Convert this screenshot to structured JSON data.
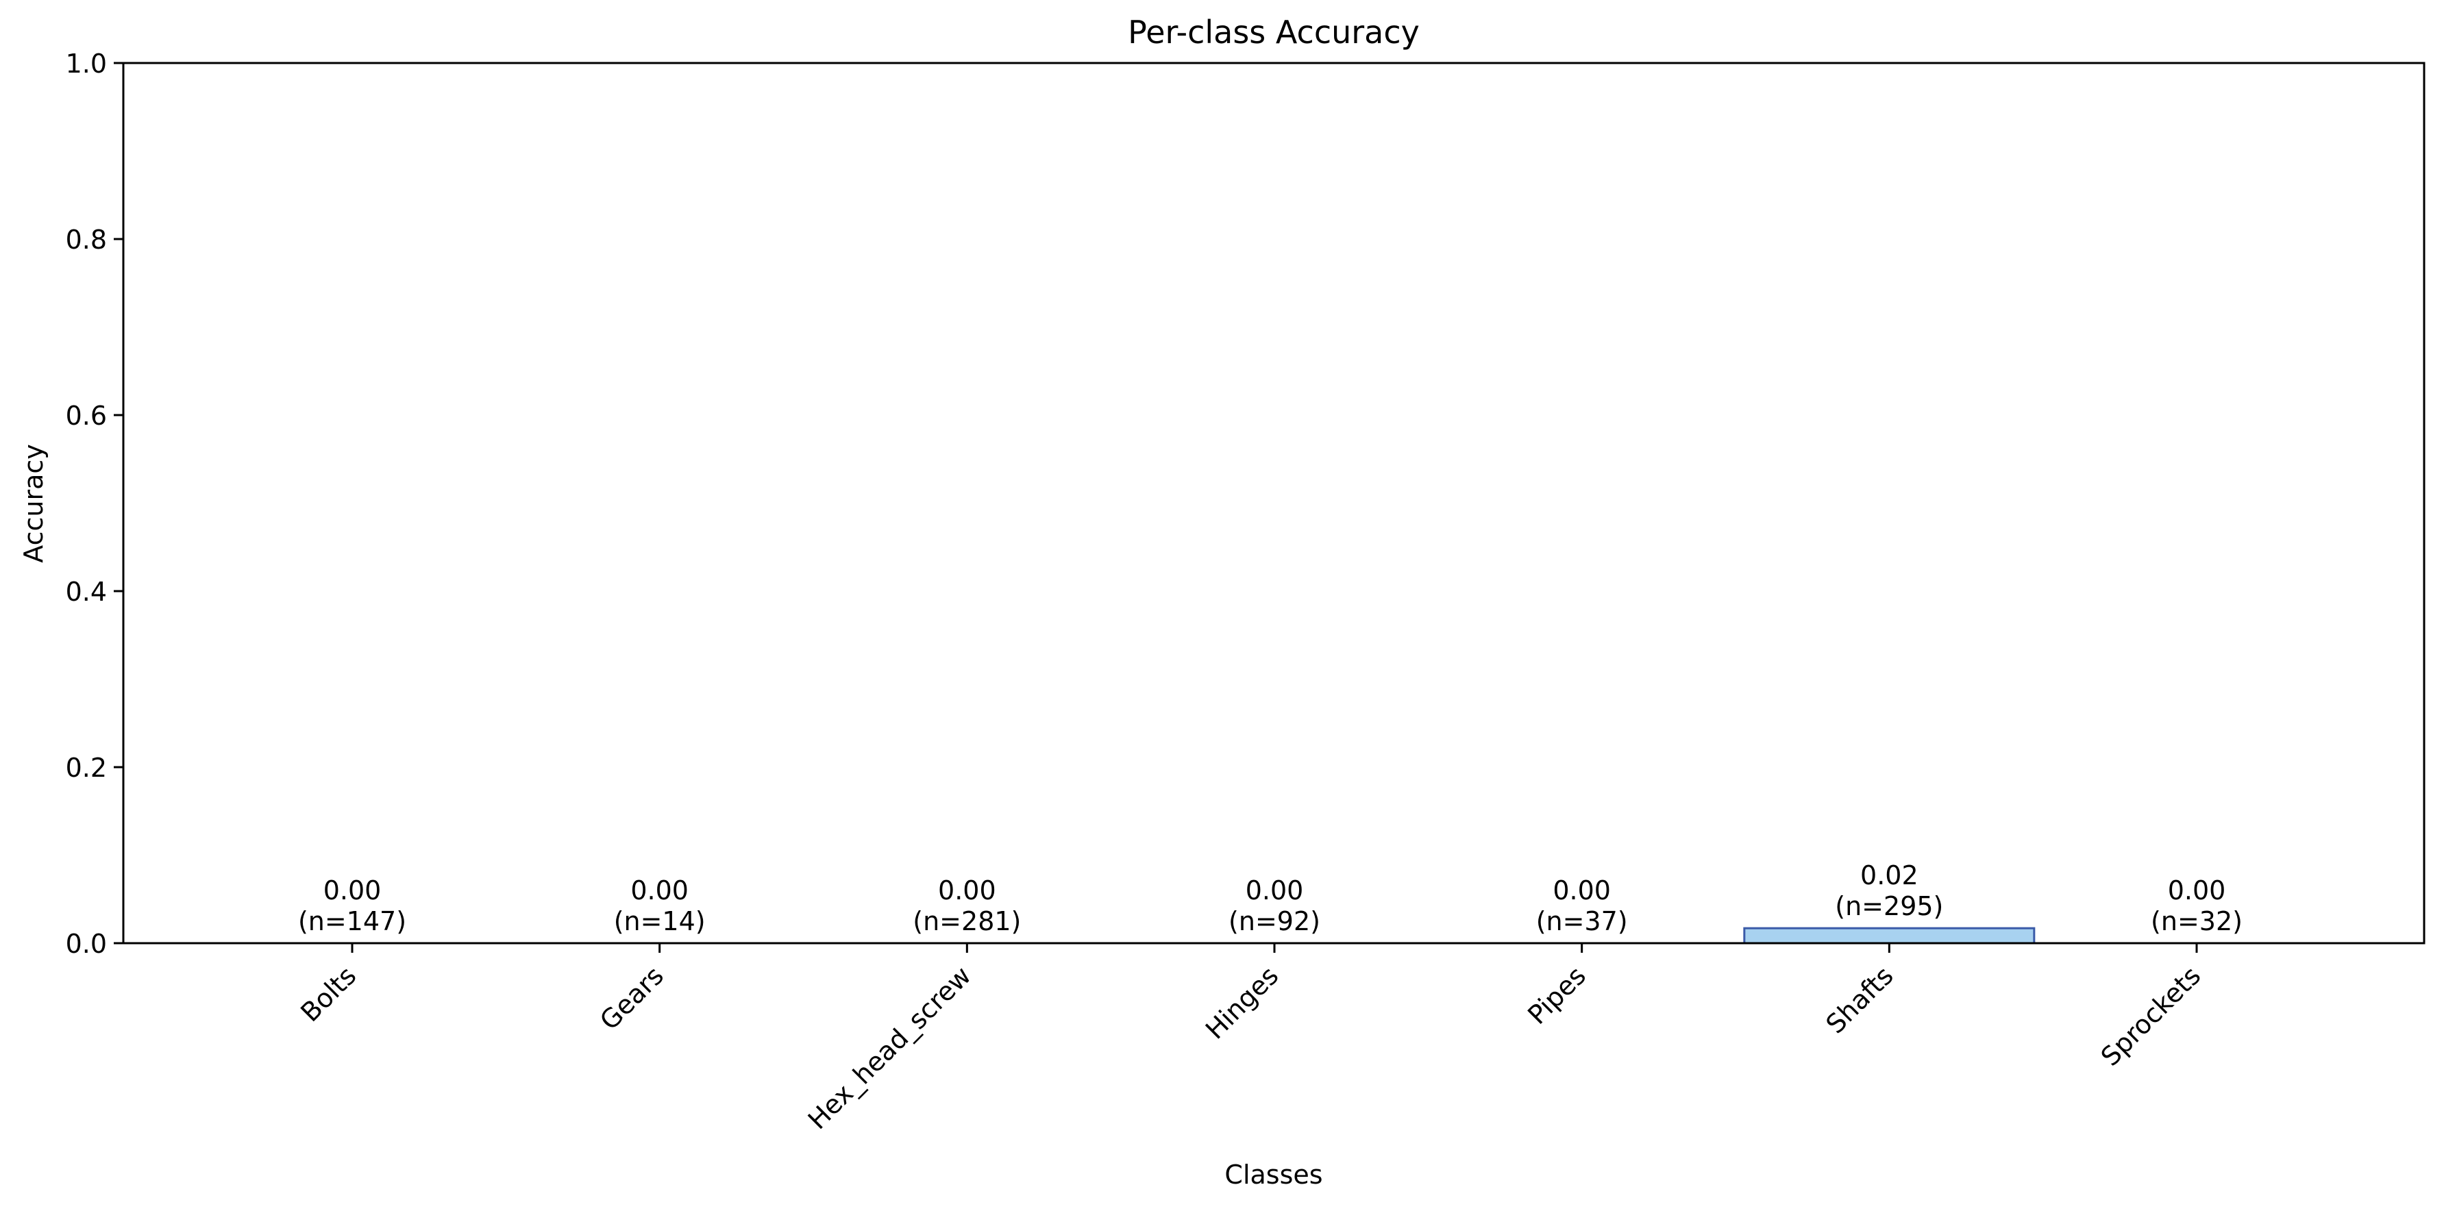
{
  "chart_data": {
    "type": "bar",
    "title": "Per-class Accuracy",
    "xlabel": "Classes",
    "ylabel": "Accuracy",
    "ylim": [
      0,
      1
    ],
    "yticks": [
      "0.0",
      "0.2",
      "0.4",
      "0.6",
      "0.8",
      "1.0"
    ],
    "ytick_values": [
      0,
      0.2,
      0.4,
      0.6,
      0.8,
      1.0
    ],
    "categories": [
      "Bolts",
      "Gears",
      "Hex_head_screw",
      "Hinges",
      "Pipes",
      "Shafts",
      "Sprockets"
    ],
    "values": [
      0.0,
      0.0,
      0.0,
      0.0,
      0.0,
      0.017,
      0.0
    ],
    "value_labels": [
      "0.00",
      "0.00",
      "0.00",
      "0.00",
      "0.00",
      "0.02",
      "0.00"
    ],
    "count_labels": [
      "(n=147)",
      "(n=14)",
      "(n=281)",
      "(n=92)",
      "(n=37)",
      "(n=295)",
      "(n=32)"
    ],
    "grid": false,
    "bar_fill": "#a8d2f0",
    "bar_edge": "#3a5aa8"
  }
}
